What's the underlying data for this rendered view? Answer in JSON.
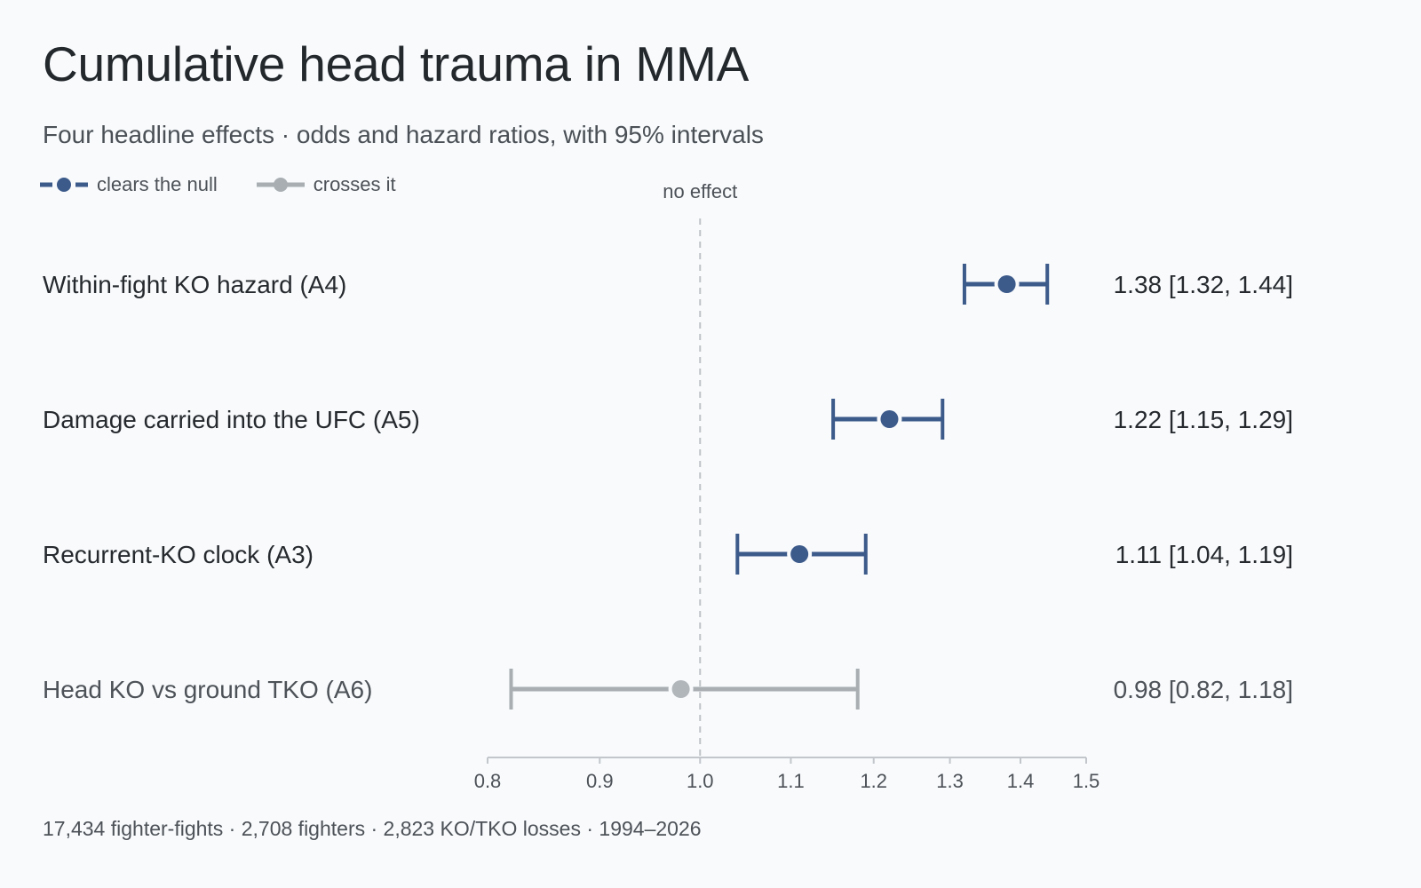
{
  "header": {
    "title": "Cumulative head trauma in MMA",
    "subtitle": "Four headline effects · odds and hazard ratios, with 95% intervals"
  },
  "legend": {
    "items": [
      {
        "label": "clears the null",
        "color": "#3c5a8a"
      },
      {
        "label": "crosses it",
        "color": "#a9aeb2"
      }
    ]
  },
  "footer": {
    "text": "17,434 fighter-fights · 2,708 fighters · 2,823 KO/TKO losses · 1994–2026"
  },
  "colors": {
    "significant": "#3c5a8a",
    "not_significant": "#a9aeb2",
    "significant_text": "#262a2e",
    "not_significant_text": "#4d5258",
    "axis": "#c3c7cb",
    "reference_line": "#bfc3c7"
  },
  "chart_data": {
    "type": "forest",
    "reference": {
      "value": 1.0,
      "label": "no effect"
    },
    "x_ticks": [
      "0.8",
      "0.9",
      "1.0",
      "1.1",
      "1.2",
      "1.3",
      "1.4",
      "1.5"
    ],
    "xlim": [
      0.8,
      1.5
    ],
    "x_scale": "log",
    "rows": [
      {
        "label": "Within-fight KO hazard (A4)",
        "estimate": 1.38,
        "lower": 1.32,
        "upper": 1.44,
        "value_text": "1.38 [1.32, 1.44]",
        "significant": true
      },
      {
        "label": "Damage carried into the UFC (A5)",
        "estimate": 1.22,
        "lower": 1.15,
        "upper": 1.29,
        "value_text": "1.22 [1.15, 1.29]",
        "significant": true
      },
      {
        "label": "Recurrent-KO clock (A3)",
        "estimate": 1.11,
        "lower": 1.04,
        "upper": 1.19,
        "value_text": "1.11 [1.04, 1.19]",
        "significant": true
      },
      {
        "label": "Head KO vs ground TKO (A6)",
        "estimate": 0.98,
        "lower": 0.82,
        "upper": 1.18,
        "value_text": "0.98 [0.82, 1.18]",
        "significant": false
      }
    ]
  }
}
